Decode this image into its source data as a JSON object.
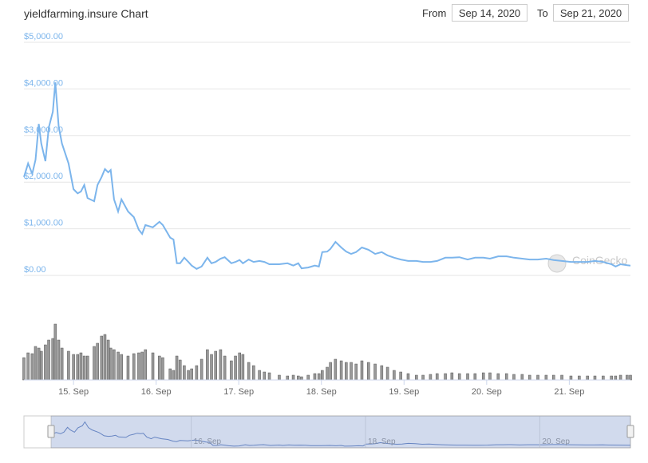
{
  "header": {
    "from_label": "From",
    "from": "Sep 14, 2020",
    "to_label": "To",
    "to": "Sep 21, 2020"
  },
  "watermark": "CoinGecko",
  "chart_data": [
    {
      "type": "line",
      "title": "yieldfarming.insure Chart",
      "series": [
        {
          "color": "#7cb5ec",
          "x": [
            14.4,
            14.45,
            14.5,
            14.54,
            14.58,
            14.61,
            14.66,
            14.7,
            14.75,
            14.78,
            14.82,
            14.86,
            14.94,
            15.0,
            15.05,
            15.09,
            15.13,
            15.17,
            15.25,
            15.29,
            15.34,
            15.38,
            15.42,
            15.45,
            15.49,
            15.54,
            15.58,
            15.66,
            15.73,
            15.79,
            15.83,
            15.87,
            15.96,
            16.04,
            16.08,
            16.17,
            16.21,
            16.25,
            16.29,
            16.34,
            16.39,
            16.43,
            16.49,
            16.55,
            16.62,
            16.67,
            16.72,
            16.78,
            16.83,
            16.91,
            16.96,
            17.01,
            17.05,
            17.12,
            17.18,
            17.25,
            17.31,
            17.37,
            17.49,
            17.59,
            17.66,
            17.72,
            17.76,
            17.84,
            17.92,
            17.97,
            18.01,
            18.07,
            18.11,
            18.17,
            18.24,
            18.3,
            18.36,
            18.42,
            18.49,
            18.57,
            18.65,
            18.73,
            18.8,
            18.88,
            18.96,
            19.05,
            19.15,
            19.23,
            19.32,
            19.4,
            19.5,
            19.58,
            19.67,
            19.77,
            19.86,
            19.96,
            20.04,
            20.14,
            20.24,
            20.33,
            20.43,
            20.52,
            20.62,
            20.72,
            20.81,
            20.91,
            21.02,
            21.12,
            21.22,
            21.31,
            21.41,
            21.51,
            21.56,
            21.62,
            21.7,
            21.74
          ],
          "values": [
            2110,
            2400,
            2180,
            2480,
            3250,
            2830,
            2450,
            3170,
            3510,
            4140,
            3200,
            2830,
            2400,
            1850,
            1760,
            1800,
            1940,
            1660,
            1590,
            1940,
            2110,
            2280,
            2210,
            2260,
            1630,
            1370,
            1630,
            1370,
            1250,
            980,
            890,
            1080,
            1030,
            1150,
            1080,
            810,
            770,
            260,
            260,
            380,
            290,
            210,
            140,
            190,
            380,
            260,
            290,
            360,
            390,
            260,
            290,
            330,
            260,
            340,
            290,
            310,
            290,
            240,
            240,
            260,
            210,
            260,
            150,
            170,
            210,
            190,
            500,
            510,
            570,
            720,
            600,
            510,
            460,
            500,
            600,
            550,
            460,
            500,
            430,
            380,
            340,
            310,
            310,
            290,
            290,
            310,
            380,
            380,
            390,
            340,
            380,
            380,
            360,
            410,
            410,
            380,
            360,
            340,
            340,
            360,
            330,
            310,
            290,
            290,
            290,
            310,
            290,
            240,
            190,
            240,
            220,
            210
          ]
        }
      ],
      "xlim": [
        14.4,
        21.74
      ],
      "ylim": [
        0,
        5000
      ],
      "yticks": [
        {
          "value": 0,
          "label": "$0.00"
        },
        {
          "value": 1000,
          "label": "$1,000.00"
        },
        {
          "value": 2000,
          "label": "$2,000.00"
        },
        {
          "value": 3000,
          "label": "$3,000.00"
        },
        {
          "value": 4000,
          "label": "$4,000.00"
        },
        {
          "value": 5000,
          "label": "$5,000.00"
        }
      ],
      "grid": true
    },
    {
      "type": "bar",
      "color": "#999999",
      "edge": "#555555",
      "x": [
        14.4,
        14.45,
        14.5,
        14.54,
        14.58,
        14.61,
        14.66,
        14.7,
        14.75,
        14.78,
        14.82,
        14.86,
        14.94,
        15.0,
        15.05,
        15.09,
        15.13,
        15.17,
        15.25,
        15.29,
        15.34,
        15.38,
        15.42,
        15.45,
        15.49,
        15.54,
        15.58,
        15.66,
        15.73,
        15.79,
        15.83,
        15.87,
        15.96,
        16.04,
        16.08,
        16.17,
        16.21,
        16.25,
        16.29,
        16.34,
        16.39,
        16.43,
        16.49,
        16.55,
        16.62,
        16.67,
        16.72,
        16.78,
        16.83,
        16.91,
        16.96,
        17.01,
        17.05,
        17.12,
        17.18,
        17.25,
        17.31,
        17.37,
        17.49,
        17.59,
        17.66,
        17.72,
        17.76,
        17.84,
        17.92,
        17.97,
        18.01,
        18.07,
        18.11,
        18.17,
        18.24,
        18.3,
        18.36,
        18.42,
        18.49,
        18.57,
        18.65,
        18.73,
        18.8,
        18.88,
        18.96,
        19.05,
        19.15,
        19.23,
        19.32,
        19.4,
        19.5,
        19.58,
        19.67,
        19.77,
        19.86,
        19.96,
        20.04,
        20.14,
        20.24,
        20.33,
        20.43,
        20.52,
        20.62,
        20.72,
        20.81,
        20.91,
        21.02,
        21.12,
        21.22,
        21.31,
        21.41,
        21.51,
        21.56,
        21.62,
        21.7,
        21.74
      ],
      "values": [
        28,
        34,
        33,
        42,
        40,
        36,
        44,
        50,
        52,
        70,
        50,
        40,
        36,
        32,
        32,
        34,
        30,
        30,
        42,
        46,
        55,
        57,
        50,
        40,
        38,
        35,
        32,
        30,
        33,
        34,
        35,
        38,
        34,
        30,
        28,
        14,
        12,
        30,
        25,
        18,
        12,
        14,
        18,
        26,
        38,
        32,
        36,
        38,
        30,
        24,
        30,
        34,
        32,
        22,
        18,
        12,
        10,
        9,
        6,
        5,
        6,
        5,
        4,
        6,
        8,
        8,
        12,
        16,
        22,
        26,
        24,
        22,
        22,
        20,
        24,
        22,
        20,
        18,
        16,
        12,
        10,
        8,
        6,
        6,
        7,
        8,
        8,
        9,
        8,
        8,
        8,
        9,
        9,
        8,
        8,
        7,
        7,
        6,
        6,
        6,
        6,
        6,
        5,
        5,
        5,
        5,
        5,
        5,
        5,
        6,
        6,
        6
      ],
      "xlim": [
        14.4,
        21.74
      ],
      "ylim": [
        0,
        75
      ],
      "xticks": [
        {
          "value": 15,
          "label": "15. Sep"
        },
        {
          "value": 16,
          "label": "16. Sep"
        },
        {
          "value": 17,
          "label": "17. Sep"
        },
        {
          "value": 18,
          "label": "18. Sep"
        },
        {
          "value": 19,
          "label": "19. Sep"
        },
        {
          "value": 20,
          "label": "20. Sep"
        },
        {
          "value": 21,
          "label": "21. Sep"
        }
      ]
    },
    {
      "type": "line",
      "color": "#6685c2",
      "xlim": [
        14.08,
        21.04
      ],
      "ylim": [
        0,
        5000
      ],
      "xticks": [
        {
          "value": 16,
          "label": "16. Sep"
        },
        {
          "value": 18,
          "label": "18. Sep"
        },
        {
          "value": 20,
          "label": "20. Sep"
        }
      ]
    }
  ]
}
